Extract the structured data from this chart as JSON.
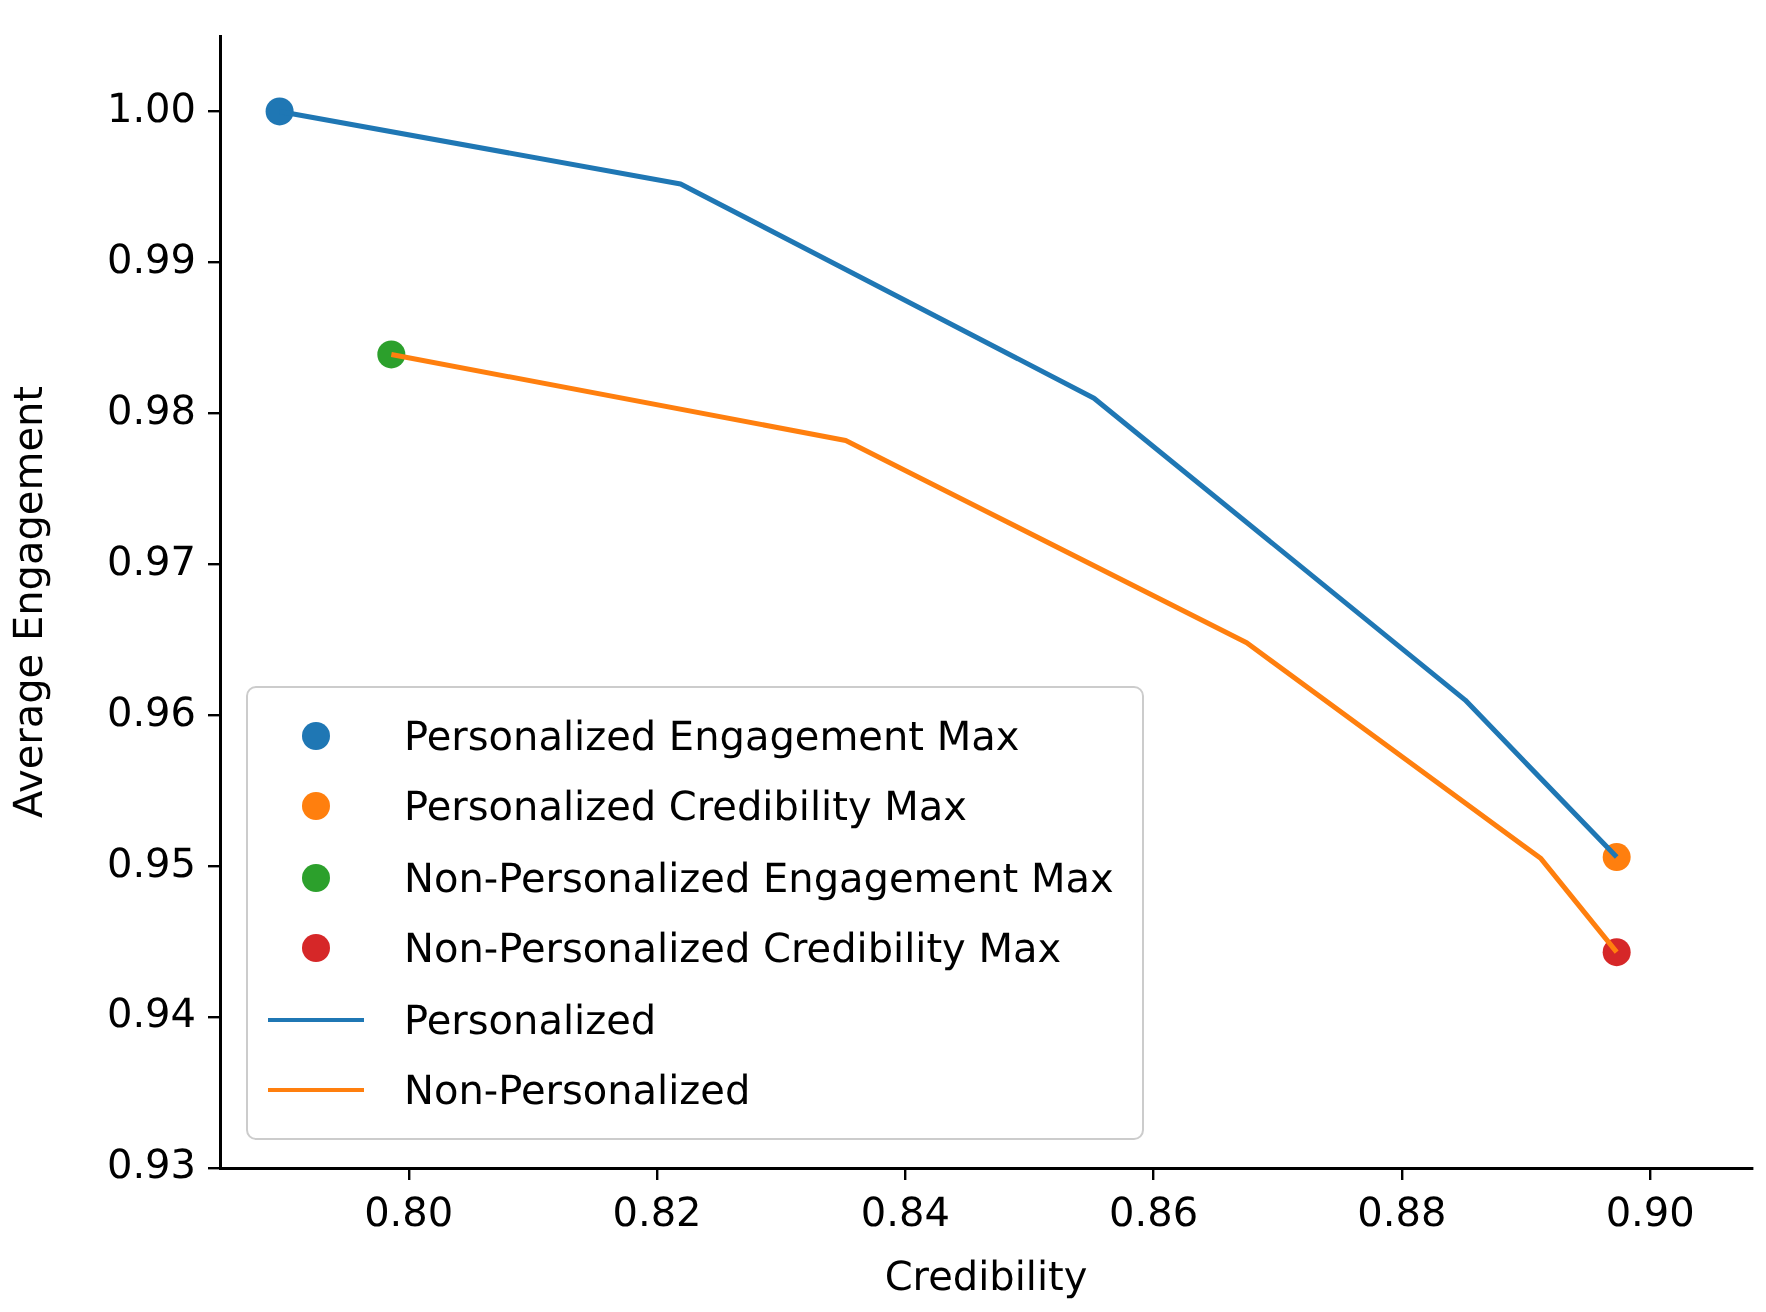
{
  "chart_data": {
    "type": "line",
    "xlabel": "Credibility",
    "ylabel": "Average Engagement",
    "xlim": [
      0.7848,
      0.9082
    ],
    "xticks": [
      {
        "value": 0.8,
        "label": "0.80"
      },
      0.82,
      0.84,
      0.86,
      0.88,
      {
        "value": 0.9,
        "label": "0.90"
      }
    ],
    "ylim": [
      0.93,
      1.005
    ],
    "yticks": [
      0.93,
      0.94,
      0.95,
      0.96,
      0.97,
      0.98,
      0.99,
      {
        "value": 1,
        "label": "1.00"
      }
    ],
    "grid": false,
    "legend": "bottom left",
    "series": [
      {
        "name": "Personalized Engagement Max",
        "type": "scatter",
        "marker": "circle",
        "color": "#1f77b4",
        "x": [
          0.7896
        ],
        "values": [
          1.0
        ]
      },
      {
        "name": "Personalized Credibility Max",
        "type": "scatter",
        "marker": "circle",
        "color": "#ff7f0e",
        "x": [
          0.8973
        ],
        "values": [
          0.9506
        ]
      },
      {
        "name": "Non-Personalized Engagement Max",
        "type": "scatter",
        "marker": "circle",
        "color": "#2ca02c",
        "x": [
          0.7986
        ],
        "values": [
          0.9839
        ]
      },
      {
        "name": "Non-Personalized Credibility Max",
        "type": "scatter",
        "marker": "circle",
        "color": "#d62728",
        "x": [
          0.8973
        ],
        "values": [
          0.9443
        ]
      },
      {
        "name": "Personalized",
        "marker": "none",
        "line_style": "solid",
        "color": "#1f77b4",
        "x": [
          0.7896,
          0.8219,
          0.8552,
          0.8851,
          0.8973
        ],
        "values": [
          1.0,
          0.9952,
          0.981,
          0.961,
          0.9506
        ]
      },
      {
        "name": "Non-Personalized",
        "marker": "none",
        "line_style": "solid",
        "color": "#ff7f0e",
        "x": [
          0.7986,
          0.8352,
          0.8675,
          0.8912,
          0.8973
        ],
        "values": [
          0.9839,
          0.9782,
          0.9648,
          0.9505,
          0.9443
        ]
      }
    ]
  }
}
